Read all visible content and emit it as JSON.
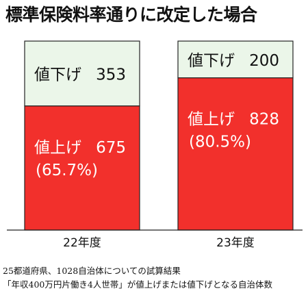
{
  "title": "標準保険料率通りに改定した場合",
  "colors": {
    "increase": "#f2302c",
    "decrease": "#ebf6e9",
    "border": "#222222",
    "text_on_increase": "#ffffff",
    "text_on_decrease": "#111111"
  },
  "chart_data": {
    "type": "bar",
    "stacked": true,
    "normalized": true,
    "categories": [
      "22年度",
      "23年度"
    ],
    "series": [
      {
        "name": "値上げ",
        "values": [
          675,
          828
        ],
        "value_texts": [
          "675",
          "828"
        ],
        "percent_texts": [
          "(65.7%)",
          "(80.5%)"
        ],
        "color": "#f2302c"
      },
      {
        "name": "値下げ",
        "values": [
          353,
          200
        ],
        "value_texts": [
          "353",
          "200"
        ],
        "color": "#ebf6e9"
      }
    ],
    "grid": false,
    "legend": "none"
  },
  "footnotes": [
    "25都道府県、1028自治体についての試算結果",
    "「年収400万円片働き4人世帯」が値上げまたは値下げとなる自治体数"
  ]
}
